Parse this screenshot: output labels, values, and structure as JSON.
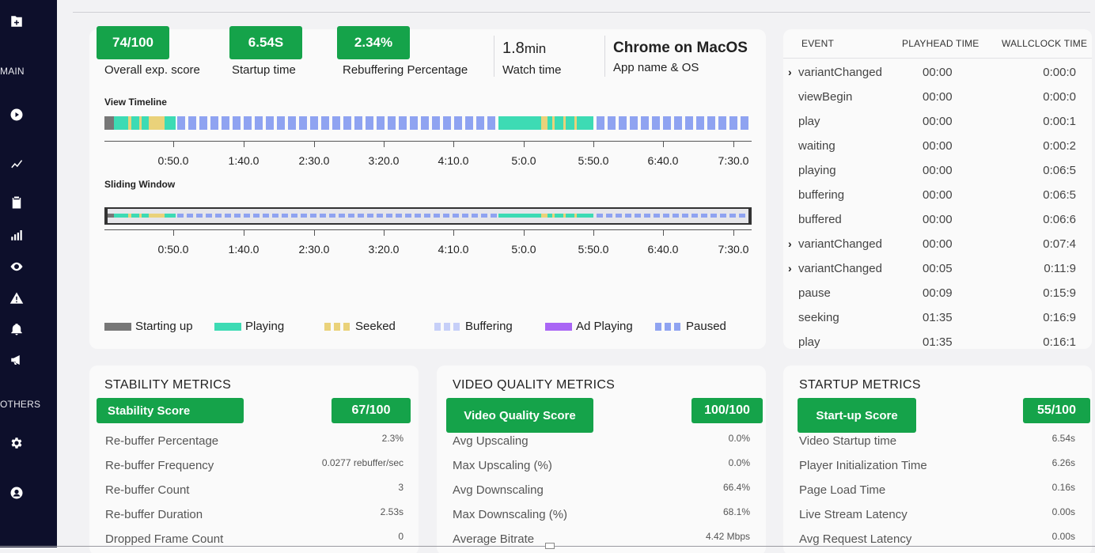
{
  "sidebar": {
    "section_main": "MAIN",
    "section_others": "OTHERS",
    "icons": [
      "add-folder-icon",
      "play-icon",
      "trend-icon",
      "clipboard-icon",
      "bar-chart-icon",
      "eye-icon",
      "warning-icon",
      "bell-icon",
      "megaphone-icon",
      "gear-icon",
      "user-icon"
    ]
  },
  "overview": {
    "score": "74/100",
    "score_label": "Overall exp. score",
    "startup": "6.54S",
    "startup_label": "Startup time",
    "rebuffer": "2.34%",
    "rebuffer_label": "Rebuffering Percentage",
    "watch_value": "1.8",
    "watch_unit": "min",
    "watch_label": "Watch time",
    "app_os": "Chrome on MacOS",
    "app_os_label": "App name & OS",
    "view_timeline_label": "View Timeline",
    "sliding_window_label": "Sliding Window",
    "ticks": [
      "0:50.0",
      "1:40.0",
      "2:30.0",
      "3:20.0",
      "4:10.0",
      "5:0.0",
      "5:50.0",
      "6:40.0",
      "7:30.0"
    ],
    "legend": [
      {
        "label": "Starting up",
        "color": "#777777",
        "style": "solid"
      },
      {
        "label": "Playing",
        "color": "#3ddbb4",
        "style": "solid"
      },
      {
        "label": "Seeked",
        "color": "#ead27a",
        "style": "dashed"
      },
      {
        "label": "Buffering",
        "color": "#c6cff8",
        "style": "dashed"
      },
      {
        "label": "Ad Playing",
        "color": "#a966f5",
        "style": "solid"
      },
      {
        "label": "Paused",
        "color": "#8fa3f1",
        "style": "dashed"
      }
    ]
  },
  "events": {
    "headers": {
      "event": "EVENT",
      "playhead": "PLAYHEAD TIME",
      "wallclock": "WALLCLOCK TIME"
    },
    "rows": [
      {
        "chevron": "›",
        "name": "variantChanged",
        "playhead": "00:00",
        "wallclock": "0:00:0"
      },
      {
        "chevron": "",
        "name": "viewBegin",
        "playhead": "00:00",
        "wallclock": "0:00:0"
      },
      {
        "chevron": "",
        "name": "play",
        "playhead": "00:00",
        "wallclock": "0:00:1"
      },
      {
        "chevron": "",
        "name": "waiting",
        "playhead": "00:00",
        "wallclock": "0:00:2"
      },
      {
        "chevron": "",
        "name": "playing",
        "playhead": "00:00",
        "wallclock": "0:06:5"
      },
      {
        "chevron": "",
        "name": "buffering",
        "playhead": "00:00",
        "wallclock": "0:06:5"
      },
      {
        "chevron": "",
        "name": "buffered",
        "playhead": "00:00",
        "wallclock": "0:06:6"
      },
      {
        "chevron": "›",
        "name": "variantChanged",
        "playhead": "00:00",
        "wallclock": "0:07:4"
      },
      {
        "chevron": "›",
        "name": "variantChanged",
        "playhead": "00:05",
        "wallclock": "0:11:9"
      },
      {
        "chevron": "",
        "name": "pause",
        "playhead": "00:09",
        "wallclock": "0:15:9"
      },
      {
        "chevron": "",
        "name": "seeking",
        "playhead": "01:35",
        "wallclock": "0:16:9"
      },
      {
        "chevron": "",
        "name": "play",
        "playhead": "01:35",
        "wallclock": "0:16:1"
      }
    ]
  },
  "stability": {
    "title": "STABILITY METRICS",
    "score_label": "Stability Score",
    "score": "67/100",
    "rows": [
      {
        "label": "Re-buffer Percentage",
        "value": "2.3%"
      },
      {
        "label": "Re-buffer Frequency",
        "value": "0.0277 rebuffer/sec"
      },
      {
        "label": "Re-buffer Count",
        "value": "3"
      },
      {
        "label": "Re-buffer Duration",
        "value": "2.53s"
      },
      {
        "label": "Dropped Frame Count",
        "value": "0"
      }
    ]
  },
  "video_quality": {
    "title": "VIDEO QUALITY METRICS",
    "score_label": "Video Quality Score",
    "score": "100/100",
    "rows": [
      {
        "label": "Avg Upscaling",
        "value": "0.0%"
      },
      {
        "label": "Max Upscaling (%)",
        "value": "0.0%"
      },
      {
        "label": "Avg Downscaling",
        "value": "66.4%"
      },
      {
        "label": "Max Downscaling (%)",
        "value": "68.1%"
      },
      {
        "label": "Average Bitrate",
        "value": "4.42 Mbps"
      }
    ]
  },
  "startup": {
    "title": "STARTUP METRICS",
    "score_label": "Start-up Score",
    "score": "55/100",
    "rows": [
      {
        "label": "Video Startup time",
        "value": "6.54s"
      },
      {
        "label": "Player Initialization Time",
        "value": "6.26s"
      },
      {
        "label": "Page Load Time",
        "value": "0.16s"
      },
      {
        "label": "Live Stream Latency",
        "value": "0.00s"
      },
      {
        "label": "Avg Request Latency",
        "value": "0.00s"
      }
    ]
  }
}
